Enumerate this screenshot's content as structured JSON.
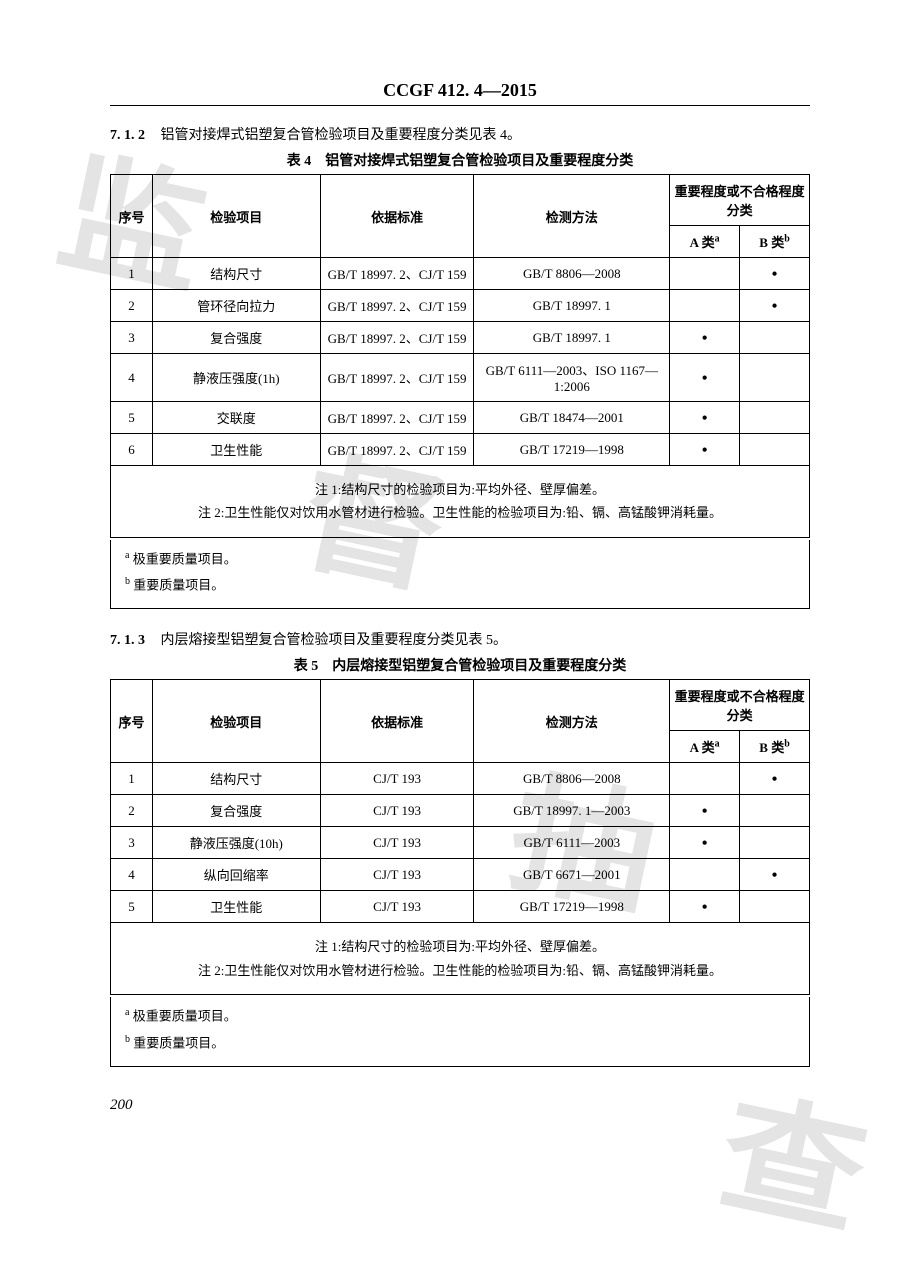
{
  "header": {
    "title": "CCGF 412. 4—2015"
  },
  "section712": {
    "num": "7. 1. 2",
    "text": "铝管对接焊式铝塑复合管检验项目及重要程度分类见表 4。"
  },
  "table4": {
    "caption": "表 4　铝管对接焊式铝塑复合管检验项目及重要程度分类",
    "headers": {
      "seq": "序号",
      "item": "检验项目",
      "std": "依据标准",
      "method": "检测方法",
      "gradeGroup": "重要程度或不合格程度分类",
      "a": "A 类",
      "a_sup": "a",
      "b": "B 类",
      "b_sup": "b"
    },
    "rows": [
      {
        "seq": "1",
        "item": "结构尺寸",
        "std": "GB/T 18997. 2、CJ/T 159",
        "method": "GB/T 8806—2008",
        "a": "",
        "b": "•"
      },
      {
        "seq": "2",
        "item": "管环径向拉力",
        "std": "GB/T 18997. 2、CJ/T 159",
        "method": "GB/T 18997. 1",
        "a": "",
        "b": "•"
      },
      {
        "seq": "3",
        "item": "复合强度",
        "std": "GB/T 18997. 2、CJ/T 159",
        "method": "GB/T 18997. 1",
        "a": "•",
        "b": ""
      },
      {
        "seq": "4",
        "item": "静液压强度(1h)",
        "std": "GB/T 18997. 2、CJ/T 159",
        "method": "GB/T 6111—2003、ISO 1167—1:2006",
        "a": "•",
        "b": ""
      },
      {
        "seq": "5",
        "item": "交联度",
        "std": "GB/T 18997. 2、CJ/T 159",
        "method": "GB/T 18474—2001",
        "a": "•",
        "b": ""
      },
      {
        "seq": "6",
        "item": "卫生性能",
        "std": "GB/T 18997. 2、CJ/T 159",
        "method": "GB/T 17219—1998",
        "a": "•",
        "b": ""
      }
    ],
    "notes": [
      "注 1:结构尺寸的检验项目为:平均外径、壁厚偏差。",
      "注 2:卫生性能仅对饮用水管材进行检验。卫生性能的检验项目为:铅、镉、高锰酸钾消耗量。"
    ],
    "footnotes": {
      "a_sup": "a",
      "a": " 极重要质量项目。",
      "b_sup": "b",
      "b": " 重要质量项目。"
    }
  },
  "section713": {
    "num": "7. 1. 3",
    "text": "内层熔接型铝塑复合管检验项目及重要程度分类见表 5。"
  },
  "table5": {
    "caption": "表 5　内层熔接型铝塑复合管检验项目及重要程度分类",
    "headers": {
      "seq": "序号",
      "item": "检验项目",
      "std": "依据标准",
      "method": "检测方法",
      "gradeGroup": "重要程度或不合格程度分类",
      "a": "A 类",
      "a_sup": "a",
      "b": "B 类",
      "b_sup": "b"
    },
    "rows": [
      {
        "seq": "1",
        "item": "结构尺寸",
        "std": "CJ/T 193",
        "method": "GB/T 8806—2008",
        "a": "",
        "b": "•"
      },
      {
        "seq": "2",
        "item": "复合强度",
        "std": "CJ/T 193",
        "method": "GB/T 18997. 1—2003",
        "a": "•",
        "b": ""
      },
      {
        "seq": "3",
        "item": "静液压强度(10h)",
        "std": "CJ/T 193",
        "method": "GB/T 6111—2003",
        "a": "•",
        "b": ""
      },
      {
        "seq": "4",
        "item": "纵向回缩率",
        "std": "CJ/T 193",
        "method": "GB/T 6671—2001",
        "a": "",
        "b": "•"
      },
      {
        "seq": "5",
        "item": "卫生性能",
        "std": "CJ/T 193",
        "method": "GB/T 17219—1998",
        "a": "•",
        "b": ""
      }
    ],
    "notes": [
      "注 1:结构尺寸的检验项目为:平均外径、壁厚偏差。",
      "注 2:卫生性能仅对饮用水管材进行检验。卫生性能的检验项目为:铅、镉、高锰酸钾消耗量。"
    ],
    "footnotes": {
      "a_sup": "a",
      "a": " 极重要质量项目。",
      "b_sup": "b",
      "b": " 重要质量项目。"
    }
  },
  "pageNumber": "200",
  "watermark": {
    "c1": "监",
    "c2": "督",
    "c3": "抽",
    "c4": "查"
  }
}
